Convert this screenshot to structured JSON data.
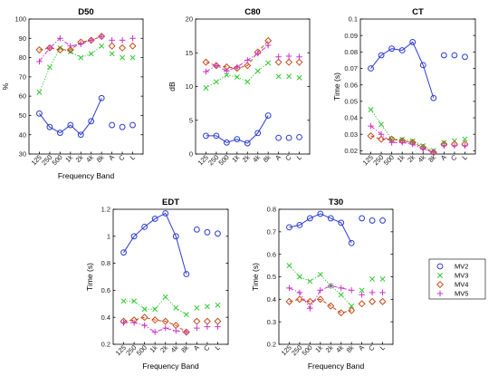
{
  "chart_data": [
    {
      "type": "line",
      "title": "D50",
      "xlabel": "Frequency Band",
      "ylabel": "%",
      "ylim": [
        30,
        100
      ],
      "yticks": [
        30,
        40,
        50,
        60,
        70,
        80,
        90,
        100
      ],
      "grid": false,
      "categories": [
        "125",
        "250",
        "500",
        "1k",
        "2k",
        "4k",
        "8k",
        "A",
        "C",
        "L"
      ],
      "series": [
        {
          "name": "MV2",
          "values": [
            51,
            44,
            41,
            45,
            40,
            47,
            59,
            45,
            44,
            45
          ]
        },
        {
          "name": "MV3",
          "values": [
            62,
            75,
            85,
            83,
            80,
            82,
            86,
            82,
            80,
            80
          ]
        },
        {
          "name": "MV4",
          "values": [
            84,
            85,
            84,
            84,
            88,
            89,
            91,
            86,
            85,
            86
          ]
        },
        {
          "name": "MV5",
          "values": [
            78,
            85,
            90,
            86,
            87,
            89,
            91,
            89,
            89,
            90
          ]
        }
      ]
    },
    {
      "type": "line",
      "title": "C80",
      "xlabel": "",
      "ylabel": "dB",
      "ylim": [
        0,
        20
      ],
      "yticks": [
        0,
        5,
        10,
        15,
        20
      ],
      "grid": false,
      "categories": [
        "125",
        "250",
        "500",
        "1k",
        "2k",
        "4k",
        "8k",
        "A",
        "C",
        "L"
      ],
      "series": [
        {
          "name": "MV2",
          "values": [
            2.7,
            2.7,
            1.7,
            2.2,
            1.6,
            3.1,
            5.7,
            2.4,
            2.4,
            2.5
          ]
        },
        {
          "name": "MV3",
          "values": [
            9.8,
            10.7,
            11.7,
            11.4,
            10.7,
            12.3,
            13.5,
            11.5,
            11.5,
            11.3
          ]
        },
        {
          "name": "MV4",
          "values": [
            13.6,
            13.1,
            12.9,
            12.7,
            13.1,
            15.1,
            16.8,
            13.6,
            13.6,
            13.6
          ]
        },
        {
          "name": "MV5",
          "values": [
            12.2,
            13.1,
            12.3,
            12.9,
            13.9,
            14.9,
            16.1,
            14.4,
            14.5,
            14.4
          ]
        }
      ]
    },
    {
      "type": "line",
      "title": "CT",
      "xlabel": "",
      "ylabel": "Time (s)",
      "ylim": [
        0.018,
        0.1
      ],
      "yticks": [
        0.02,
        0.03,
        0.04,
        0.05,
        0.06,
        0.07,
        0.08,
        0.09,
        0.1
      ],
      "grid": false,
      "categories": [
        "125",
        "250",
        "500",
        "1k",
        "2k",
        "4k",
        "8k",
        "A",
        "C",
        "L"
      ],
      "series": [
        {
          "name": "MV2",
          "values": [
            0.07,
            0.078,
            0.082,
            0.081,
            0.086,
            0.072,
            0.052,
            0.078,
            0.078,
            0.077
          ]
        },
        {
          "name": "MV3",
          "values": [
            0.045,
            0.036,
            0.027,
            0.027,
            0.026,
            0.023,
            0.02,
            0.025,
            0.026,
            0.027
          ]
        },
        {
          "name": "MV4",
          "values": [
            0.029,
            0.027,
            0.027,
            0.026,
            0.025,
            0.022,
            0.019,
            0.024,
            0.024,
            0.024
          ]
        },
        {
          "name": "MV5",
          "values": [
            0.035,
            0.03,
            0.025,
            0.025,
            0.024,
            0.021,
            0.019,
            0.023,
            0.023,
            0.023
          ]
        }
      ]
    },
    {
      "type": "line",
      "title": "EDT",
      "xlabel": "Frequency Band",
      "ylabel": "Time (s)",
      "ylim": [
        0.2,
        1.2
      ],
      "yticks": [
        0.2,
        0.4,
        0.6,
        0.8,
        1,
        1.2
      ],
      "grid": false,
      "categories": [
        "125",
        "250",
        "500",
        "1k",
        "2k",
        "4k",
        "8k",
        "A",
        "C",
        "L"
      ],
      "series": [
        {
          "name": "MV2",
          "values": [
            0.88,
            1.0,
            1.07,
            1.13,
            1.17,
            1.0,
            0.72,
            1.05,
            1.03,
            1.02
          ]
        },
        {
          "name": "MV3",
          "values": [
            0.52,
            0.52,
            0.46,
            0.46,
            0.55,
            0.47,
            0.42,
            0.47,
            0.48,
            0.49
          ]
        },
        {
          "name": "MV4",
          "values": [
            0.37,
            0.38,
            0.4,
            0.38,
            0.37,
            0.34,
            0.29,
            0.37,
            0.37,
            0.37
          ]
        },
        {
          "name": "MV5",
          "values": [
            0.36,
            0.36,
            0.34,
            0.29,
            0.32,
            0.3,
            0.29,
            0.32,
            0.33,
            0.33
          ]
        }
      ]
    },
    {
      "type": "line",
      "title": "T30",
      "xlabel": "Frequency Band",
      "ylabel": "Time (s)",
      "ylim": [
        0.2,
        0.8
      ],
      "yticks": [
        0.2,
        0.3,
        0.4,
        0.5,
        0.6,
        0.7,
        0.8
      ],
      "grid": false,
      "categories": [
        "125",
        "250",
        "500",
        "1k",
        "2k",
        "4k",
        "8k",
        "A",
        "C",
        "L"
      ],
      "series": [
        {
          "name": "MV2",
          "values": [
            0.72,
            0.73,
            0.76,
            0.78,
            0.76,
            0.74,
            0.65,
            0.76,
            0.75,
            0.75
          ]
        },
        {
          "name": "MV3",
          "values": [
            0.55,
            0.5,
            0.48,
            0.51,
            0.46,
            0.42,
            0.37,
            0.44,
            0.49,
            0.49
          ]
        },
        {
          "name": "MV4",
          "values": [
            0.39,
            0.4,
            0.39,
            0.4,
            0.37,
            0.34,
            0.35,
            0.38,
            0.39,
            0.39
          ]
        },
        {
          "name": "MV5",
          "values": [
            0.45,
            0.43,
            0.36,
            0.44,
            0.46,
            0.45,
            0.44,
            0.42,
            0.43,
            0.43
          ]
        }
      ]
    }
  ],
  "legend": {
    "placement": "right",
    "entries": [
      {
        "name": "MV2",
        "marker": "circle",
        "color": "#2b3ccf"
      },
      {
        "name": "MV3",
        "marker": "x",
        "color": "#2fc82f"
      },
      {
        "name": "MV4",
        "marker": "diamond",
        "color": "#c44a1a"
      },
      {
        "name": "MV5",
        "marker": "plus",
        "color": "#cc33cc"
      }
    ]
  },
  "styles": {
    "MV2": {
      "color": "#2b3ccf",
      "marker": "circle",
      "line": "solid"
    },
    "MV3": {
      "color": "#2fc82f",
      "marker": "x",
      "line": "dotted"
    },
    "MV4": {
      "color": "#c44a1a",
      "marker": "diamond",
      "line": "dashed"
    },
    "MV5": {
      "color": "#cc33cc",
      "marker": "plus",
      "line": "dashdot"
    }
  }
}
